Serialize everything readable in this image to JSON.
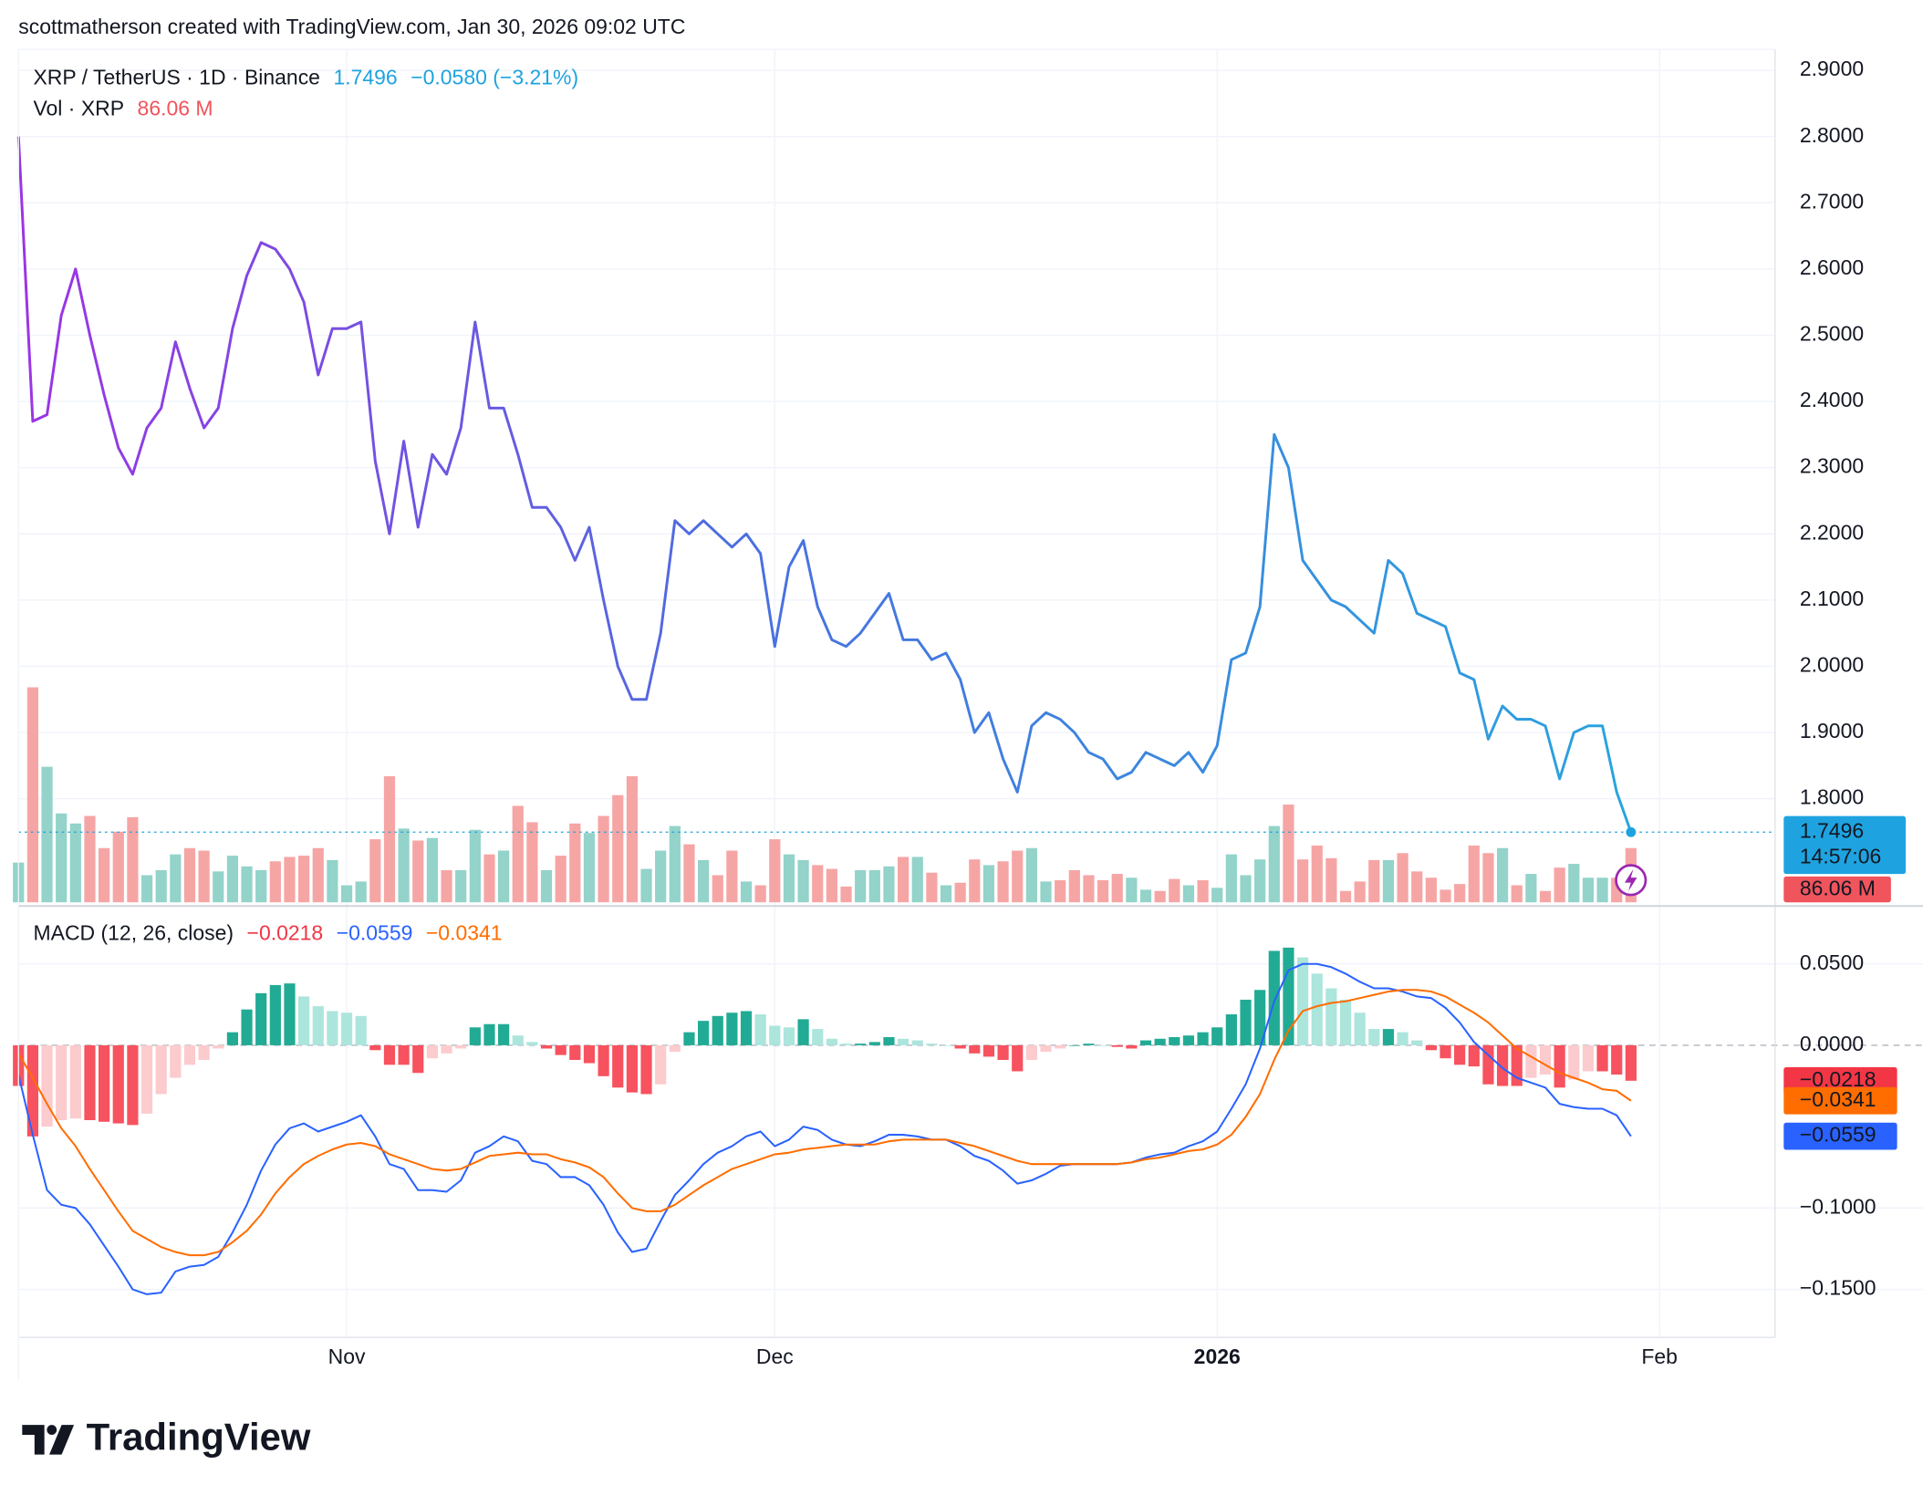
{
  "header": "scottmatherson created with TradingView.com, Jan 30, 2026 09:02 UTC",
  "brand": "TradingView",
  "chart_data": [
    {
      "type": "line",
      "title": "XRP / TetherUS · 1D · Binance",
      "subtitle": "−0.0580 (−3.21%)",
      "countdown": "14:57:06",
      "colors": [
        "#9c34e4",
        "#4a6fe0",
        "#2aa4de"
      ],
      "last_color": "#1ea3e0",
      "ylim": [
        1.6436,
        2.9317
      ],
      "yticks": [
        {
          "value": 1.8,
          "label": "1.8000"
        },
        {
          "value": 1.9,
          "label": "1.9000"
        },
        {
          "value": 2.0,
          "label": "2.0000"
        },
        {
          "value": 2.1,
          "label": "2.1000"
        },
        {
          "value": 2.2,
          "label": "2.2000"
        },
        {
          "value": 2.3,
          "label": "2.3000"
        },
        {
          "value": 2.4,
          "label": "2.4000"
        },
        {
          "value": 2.5,
          "label": "2.5000"
        },
        {
          "value": 2.6,
          "label": "2.6000"
        },
        {
          "value": 2.7,
          "label": "2.7000"
        },
        {
          "value": 2.8,
          "label": "2.8000"
        },
        {
          "value": 2.9,
          "label": "2.9000"
        }
      ],
      "grid": true,
      "values": [
        2.8,
        2.37,
        2.38,
        2.53,
        2.6,
        2.5,
        2.41,
        2.33,
        2.29,
        2.36,
        2.39,
        2.49,
        2.42,
        2.36,
        2.39,
        2.51,
        2.59,
        2.64,
        2.63,
        2.6,
        2.55,
        2.44,
        2.51,
        2.51,
        2.52,
        2.31,
        2.2,
        2.34,
        2.21,
        2.32,
        2.29,
        2.36,
        2.52,
        2.39,
        2.39,
        2.32,
        2.24,
        2.24,
        2.21,
        2.16,
        2.21,
        2.1,
        2.0,
        1.95,
        1.95,
        2.05,
        2.22,
        2.2,
        2.22,
        2.2,
        2.18,
        2.2,
        2.17,
        2.03,
        2.15,
        2.19,
        2.09,
        2.04,
        2.03,
        2.05,
        2.08,
        2.11,
        2.04,
        2.04,
        2.01,
        2.02,
        1.98,
        1.9,
        1.93,
        1.86,
        1.81,
        1.91,
        1.93,
        1.92,
        1.9,
        1.87,
        1.86,
        1.83,
        1.84,
        1.87,
        1.86,
        1.85,
        1.87,
        1.84,
        1.88,
        2.01,
        2.02,
        2.09,
        2.35,
        2.3,
        2.16,
        2.13,
        2.1,
        2.09,
        2.07,
        2.05,
        2.16,
        2.14,
        2.08,
        2.07,
        2.06,
        1.99,
        1.98,
        1.89,
        1.94,
        1.92,
        1.92,
        1.91,
        1.83,
        1.9,
        1.91,
        1.91,
        1.81,
        1.7496
      ]
    },
    {
      "type": "bar",
      "title": "Vol · XRP",
      "last_value_label": "86.06 M",
      "colors": [
        "#93d3c9",
        "#f6a5a5"
      ],
      "last_color": "#f0545c",
      "ylim": [
        0,
        1353
      ],
      "values": [
        63,
        341,
        215,
        141,
        125,
        137,
        86,
        112,
        135,
        43,
        51,
        76,
        86,
        82,
        49,
        74,
        57,
        51,
        65,
        72,
        74,
        86,
        67,
        27,
        33,
        100,
        200,
        117,
        98,
        102,
        51,
        51,
        115,
        76,
        82,
        153,
        127,
        51,
        74,
        125,
        110,
        137,
        170,
        200,
        53,
        82,
        121,
        92,
        67,
        43,
        82,
        33,
        27,
        100,
        76,
        67,
        59,
        53,
        25,
        51,
        51,
        57,
        72,
        72,
        47,
        27,
        31,
        68,
        59,
        65,
        82,
        86,
        33,
        35,
        51,
        43,
        35,
        45,
        39,
        20,
        18,
        37,
        27,
        35,
        23,
        76,
        43,
        68,
        121,
        155,
        68,
        90,
        70,
        18,
        33,
        67,
        67,
        78,
        49,
        39,
        20,
        29,
        90,
        78,
        86,
        27,
        45,
        18,
        55,
        61,
        39,
        39,
        39,
        86.06
      ]
    },
    {
      "type": "macd",
      "title": "MACD (12, 26, close)",
      "xlim": [
        0,
        123.1
      ],
      "xticks": [
        {
          "value": 23,
          "label": "Nov"
        },
        {
          "value": 53,
          "label": "Dec"
        },
        {
          "value": 84,
          "label": "2026"
        },
        {
          "value": 115,
          "label": "Feb"
        }
      ],
      "ylim": [
        -0.1795,
        0.0833
      ],
      "yticks": [
        {
          "value": 0.05,
          "label": "0.0500"
        },
        {
          "value": 0,
          "label": "0.0000"
        },
        {
          "value": -0.1,
          "label": "−0.1000"
        },
        {
          "value": -0.15,
          "label": "−0.1500"
        }
      ],
      "series": [
        {
          "type": "histogram",
          "colors": [
            "#22ab94",
            "#ace5dc",
            "#f7525f",
            "#fccbcd"
          ],
          "last_color": "#f23645",
          "last_label": "−0.0218",
          "values": [
            -0.025,
            -0.056,
            -0.05,
            -0.046,
            -0.045,
            -0.046,
            -0.047,
            -0.048,
            -0.049,
            -0.042,
            -0.03,
            -0.02,
            -0.012,
            -0.009,
            -0.002,
            0.008,
            0.022,
            0.032,
            0.037,
            0.038,
            0.03,
            0.024,
            0.021,
            0.02,
            0.018,
            -0.003,
            -0.012,
            -0.012,
            -0.017,
            -0.008,
            -0.005,
            -0.002,
            0.011,
            0.013,
            0.013,
            0.006,
            0.002,
            -0.002,
            -0.006,
            -0.009,
            -0.011,
            -0.019,
            -0.026,
            -0.029,
            -0.03,
            -0.024,
            -0.004,
            0.008,
            0.015,
            0.018,
            0.02,
            0.021,
            0.019,
            0.012,
            0.011,
            0.016,
            0.01,
            0.004,
            0.001,
            0.001,
            0.002,
            0.005,
            0.004,
            0.003,
            0.001,
            0,
            -0.002,
            -0.005,
            -0.007,
            -0.009,
            -0.016,
            -0.009,
            -0.004,
            -0.002,
            0,
            0.001,
            0,
            -0.001,
            -0.002,
            0.003,
            0.004,
            0.005,
            0.006,
            0.008,
            0.011,
            0.019,
            0.028,
            0.034,
            0.058,
            0.06,
            0.054,
            0.044,
            0.035,
            0.028,
            0.02,
            0.01,
            0.01,
            0.008,
            0.003,
            -0.003,
            -0.008,
            -0.012,
            -0.013,
            -0.024,
            -0.025,
            -0.025,
            -0.02,
            -0.018,
            -0.026,
            -0.021,
            -0.016,
            -0.016,
            -0.018,
            -0.0218
          ]
        },
        {
          "type": "line",
          "color": "#2962ff",
          "last_label": "−0.0559",
          "values": [
            -0.018,
            -0.055,
            -0.089,
            -0.098,
            -0.1,
            -0.11,
            -0.123,
            -0.136,
            -0.15,
            -0.153,
            -0.152,
            -0.139,
            -0.136,
            -0.135,
            -0.13,
            -0.115,
            -0.098,
            -0.077,
            -0.061,
            -0.051,
            -0.048,
            -0.053,
            -0.05,
            -0.047,
            -0.043,
            -0.056,
            -0.073,
            -0.076,
            -0.089,
            -0.089,
            -0.09,
            -0.083,
            -0.066,
            -0.062,
            -0.056,
            -0.059,
            -0.071,
            -0.073,
            -0.081,
            -0.081,
            -0.086,
            -0.098,
            -0.115,
            -0.127,
            -0.125,
            -0.108,
            -0.092,
            -0.083,
            -0.073,
            -0.066,
            -0.062,
            -0.056,
            -0.053,
            -0.062,
            -0.058,
            -0.05,
            -0.052,
            -0.058,
            -0.061,
            -0.062,
            -0.059,
            -0.055,
            -0.055,
            -0.056,
            -0.058,
            -0.058,
            -0.062,
            -0.068,
            -0.071,
            -0.077,
            -0.085,
            -0.083,
            -0.079,
            -0.074,
            -0.073,
            -0.073,
            -0.073,
            -0.073,
            -0.072,
            -0.069,
            -0.067,
            -0.066,
            -0.062,
            -0.059,
            -0.053,
            -0.039,
            -0.024,
            -0.002,
            0.027,
            0.046,
            0.05,
            0.05,
            0.048,
            0.044,
            0.039,
            0.035,
            0.035,
            0.033,
            0.03,
            0.029,
            0.023,
            0.014,
            0.002,
            -0.006,
            -0.014,
            -0.02,
            -0.023,
            -0.026,
            -0.036,
            -0.038,
            -0.039,
            -0.039,
            -0.043,
            -0.0559
          ]
        },
        {
          "type": "line",
          "color": "#ff6d00",
          "last_label": "−0.0341",
          "values": [
            -0.005,
            -0.02,
            -0.036,
            -0.051,
            -0.062,
            -0.076,
            -0.089,
            -0.102,
            -0.114,
            -0.119,
            -0.124,
            -0.127,
            -0.129,
            -0.129,
            -0.127,
            -0.121,
            -0.114,
            -0.104,
            -0.091,
            -0.081,
            -0.073,
            -0.068,
            -0.064,
            -0.061,
            -0.06,
            -0.062,
            -0.067,
            -0.07,
            -0.073,
            -0.076,
            -0.077,
            -0.076,
            -0.072,
            -0.068,
            -0.067,
            -0.066,
            -0.067,
            -0.067,
            -0.07,
            -0.072,
            -0.075,
            -0.081,
            -0.091,
            -0.1,
            -0.102,
            -0.102,
            -0.098,
            -0.092,
            -0.086,
            -0.081,
            -0.076,
            -0.073,
            -0.07,
            -0.067,
            -0.066,
            -0.064,
            -0.063,
            -0.062,
            -0.061,
            -0.061,
            -0.061,
            -0.059,
            -0.058,
            -0.058,
            -0.058,
            -0.058,
            -0.06,
            -0.062,
            -0.065,
            -0.068,
            -0.071,
            -0.073,
            -0.073,
            -0.073,
            -0.073,
            -0.073,
            -0.073,
            -0.073,
            -0.072,
            -0.07,
            -0.069,
            -0.067,
            -0.065,
            -0.064,
            -0.061,
            -0.055,
            -0.044,
            -0.03,
            -0.009,
            0.009,
            0.021,
            0.024,
            0.026,
            0.027,
            0.029,
            0.031,
            0.033,
            0.034,
            0.034,
            0.033,
            0.03,
            0.025,
            0.02,
            0.014,
            0.006,
            -0.002,
            -0.007,
            -0.012,
            -0.017,
            -0.02,
            -0.023,
            -0.027,
            -0.028,
            -0.0341
          ]
        }
      ]
    }
  ]
}
